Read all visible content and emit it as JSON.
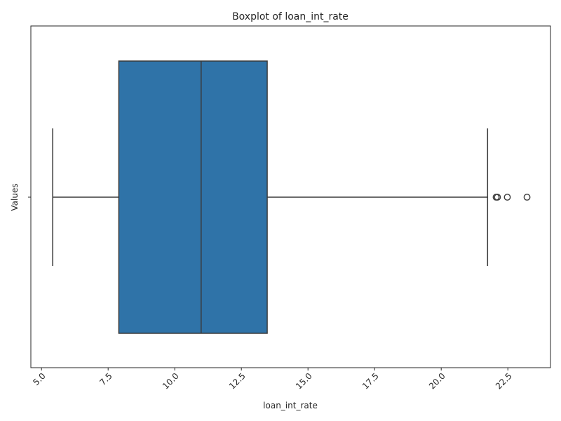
{
  "chart_data": {
    "type": "boxplot",
    "title": "Boxplot of loan_int_rate",
    "xlabel": "loan_int_rate",
    "ylabel": "Values",
    "xlim": [
      4.6,
      24.1
    ],
    "xticks": [
      5.0,
      7.5,
      10.0,
      12.5,
      15.0,
      17.5,
      20.0,
      22.5
    ],
    "xtick_labels": [
      "5.0",
      "7.5",
      "10.0",
      "12.5",
      "15.0",
      "17.5",
      "20.0",
      "22.5"
    ],
    "xtick_rotation_deg": 45,
    "grid": false,
    "box": {
      "whisker_low": 5.42,
      "q1": 7.9,
      "median": 10.99,
      "q3": 13.47,
      "whisker_high": 21.74,
      "outliers": [
        22.06,
        22.11,
        22.48,
        23.22
      ]
    },
    "colors": {
      "box_fill": "#2f73a8",
      "line": "#3a3a3a",
      "frame": "#262626",
      "text": "#262626"
    }
  }
}
